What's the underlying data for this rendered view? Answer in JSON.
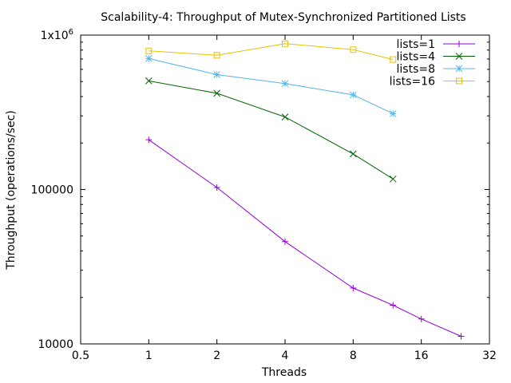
{
  "chart_data": {
    "type": "line",
    "title": "Scalability-4: Throughput of Mutex-Synchronized Partitioned Lists",
    "xlabel": "Threads",
    "ylabel": "Throughput (operations/sec)",
    "x_scale": "log2",
    "y_scale": "log10",
    "xlim": [
      0.5,
      32
    ],
    "ylim": [
      10000,
      1000000
    ],
    "x_ticks": [
      {
        "value": 0.5,
        "label": "0.5"
      },
      {
        "value": 1,
        "label": "1"
      },
      {
        "value": 2,
        "label": "2"
      },
      {
        "value": 4,
        "label": "4"
      },
      {
        "value": 8,
        "label": "8"
      },
      {
        "value": 16,
        "label": "16"
      },
      {
        "value": 32,
        "label": "32"
      }
    ],
    "y_ticks": [
      {
        "value": 10000,
        "label": "10000"
      },
      {
        "value": 100000,
        "label": "100000"
      },
      {
        "value": 1000000,
        "label": "1x10",
        "sup": "6"
      }
    ],
    "grid": false,
    "legend_position": "top-right",
    "series": [
      {
        "name": "lists=1",
        "color": "#9400d3",
        "marker": "plus",
        "x": [
          1,
          2,
          4,
          8,
          12,
          16,
          24
        ],
        "y": [
          210000,
          103000,
          46000,
          23000,
          17800,
          14500,
          11200
        ]
      },
      {
        "name": "lists=4",
        "color": "#006400",
        "marker": "cross",
        "x": [
          1,
          2,
          4,
          8,
          12
        ],
        "y": [
          505000,
          420000,
          295000,
          170000,
          117000
        ]
      },
      {
        "name": "lists=8",
        "color": "#56b4e9",
        "marker": "star",
        "x": [
          1,
          2,
          4,
          8,
          12
        ],
        "y": [
          705000,
          555000,
          485000,
          410000,
          310000
        ]
      },
      {
        "name": "lists=16",
        "color": "#e6c200",
        "marker": "square",
        "x": [
          1,
          2,
          4,
          8,
          12
        ],
        "y": [
          790000,
          740000,
          880000,
          805000,
          695000
        ]
      }
    ]
  }
}
